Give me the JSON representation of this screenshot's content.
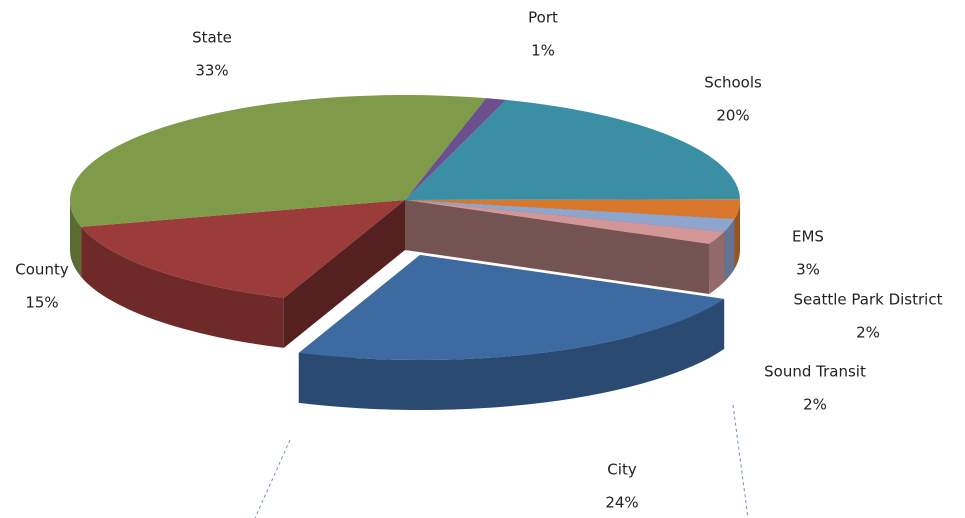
{
  "chart_data": {
    "type": "pie3d",
    "categories": [
      "Port",
      "Schools",
      "EMS",
      "Seattle Park District",
      "Sound Transit",
      "City",
      "County",
      "State"
    ],
    "values": [
      1,
      20,
      3,
      2,
      2,
      24,
      15,
      33
    ],
    "value_labels": [
      "1%",
      "20%",
      "3%",
      "2%",
      "2%",
      "24%",
      "15%",
      "33%"
    ],
    "colors": [
      "#6b4f8f",
      "#3a8fa5",
      "#d9782d",
      "#8ea5cd",
      "#d39696",
      "#3c6aa1",
      "#9b3c3a",
      "#7f9a48"
    ],
    "exploded": "City"
  }
}
